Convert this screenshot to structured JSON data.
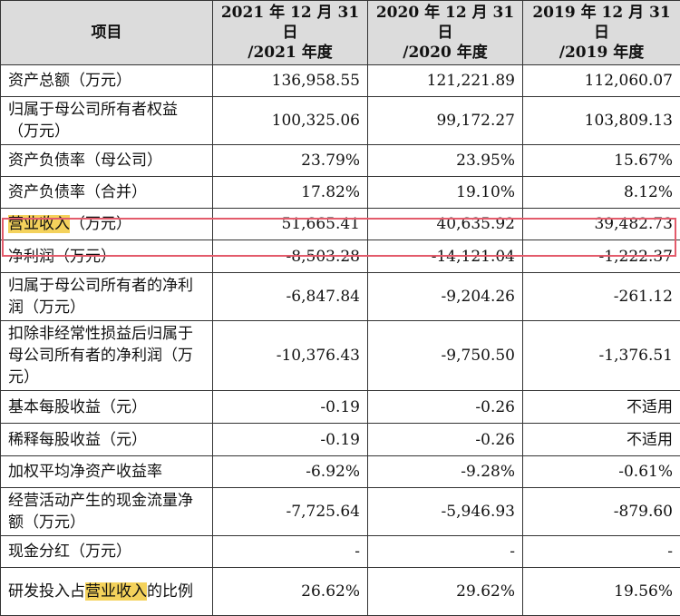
{
  "header": {
    "col0": "项目",
    "col1": [
      "2021 年 12 月 31 日",
      "/2021 年度"
    ],
    "col2": [
      "2020 年 12 月 31 日",
      "/2020 年度"
    ],
    "col3": [
      "2019 年 12 月 31 日",
      "/2019 年度"
    ]
  },
  "rows": [
    {
      "label": "资产总额（万元）",
      "v2021": "136,958.55",
      "v2020": "121,221.89",
      "v2019": "112,060.07"
    },
    {
      "label": "归属于母公司所有者权益（万元）",
      "v2021": "100,325.06",
      "v2020": "99,172.27",
      "v2019": "103,809.13"
    },
    {
      "label": "资产负债率（母公司）",
      "v2021": "23.79%",
      "v2020": "23.95%",
      "v2019": "15.67%"
    },
    {
      "label": "资产负债率（合并）",
      "v2021": "17.82%",
      "v2020": "19.10%",
      "v2019": "8.12%"
    },
    {
      "label_hl": "营业收入",
      "label_rest": "（万元）",
      "v2021": "51,665.41",
      "v2020": "40,635.92",
      "v2019": "39,482.73"
    },
    {
      "label": "净利润（万元）",
      "v2021": "-8,503.28",
      "v2020": "-14,121.04",
      "v2019": "-1,222.37"
    },
    {
      "label": "归属于母公司所有者的净利润（万元）",
      "v2021": "-6,847.84",
      "v2020": "-9,204.26",
      "v2019": "-261.12"
    },
    {
      "label": "扣除非经常性损益后归属于母公司所有者的净利润（万元）",
      "v2021": "-10,376.43",
      "v2020": "-9,750.50",
      "v2019": "-1,376.51"
    },
    {
      "label": "基本每股收益（元）",
      "v2021": "-0.19",
      "v2020": "-0.26",
      "v2019": "不适用"
    },
    {
      "label": "稀释每股收益（元）",
      "v2021": "-0.19",
      "v2020": "-0.26",
      "v2019": "不适用"
    },
    {
      "label": "加权平均净资产收益率",
      "v2021": "-6.92%",
      "v2020": "-9.28%",
      "v2019": "-0.61%"
    },
    {
      "label": "经营活动产生的现金流量净额（万元）",
      "v2021": "-7,725.64",
      "v2020": "-5,946.93",
      "v2019": "-879.60"
    },
    {
      "label": "现金分红（万元）",
      "v2021": "-",
      "v2020": "-",
      "v2019": "-"
    },
    {
      "label_pre": "研发投入占",
      "label_hl": "营业收入",
      "label_post": "的比例",
      "v2021": "26.62%",
      "v2020": "29.62%",
      "v2019": "19.56%"
    }
  ],
  "colors": {
    "highlight": "#f4d25c",
    "box": "#e35b6b",
    "header_bg": "#dcdcdc"
  }
}
